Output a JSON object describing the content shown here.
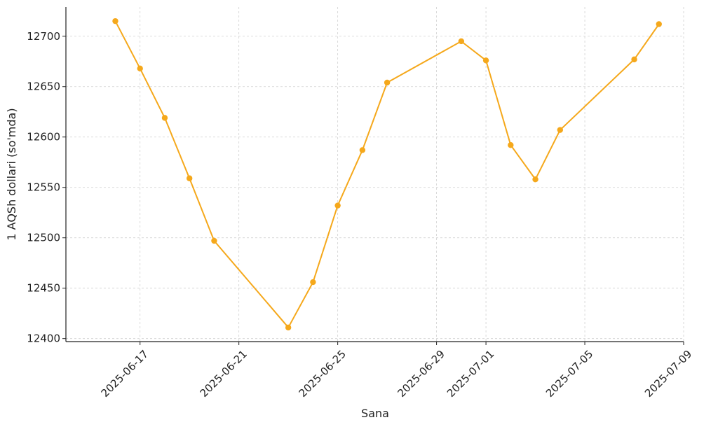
{
  "chart_data": {
    "type": "line",
    "title": "",
    "xlabel": "Sana",
    "ylabel": "1 AQSh dollari (so'mda)",
    "xlim": [
      "2025-06-14",
      "2025-07-09"
    ],
    "ylim": [
      12397,
      12729
    ],
    "grid": true,
    "legend": "none",
    "color": "#F5A81B",
    "x_ticks": [
      "2025-06-17",
      "2025-06-21",
      "2025-06-25",
      "2025-06-29",
      "2025-07-01",
      "2025-07-05",
      "2025-07-09"
    ],
    "y_ticks": [
      12400,
      12450,
      12500,
      12550,
      12600,
      12650,
      12700
    ],
    "series": [
      {
        "x": [
          "2025-06-16",
          "2025-06-17",
          "2025-06-18",
          "2025-06-19",
          "2025-06-20",
          "2025-06-23",
          "2025-06-24",
          "2025-06-25",
          "2025-06-26",
          "2025-06-27",
          "2025-06-30",
          "2025-07-01",
          "2025-07-02",
          "2025-07-03",
          "2025-07-04",
          "2025-07-07",
          "2025-07-08"
        ],
        "values": [
          12715,
          12668,
          12619,
          12559,
          12497,
          12411,
          12456,
          12532,
          12587,
          12654,
          12695,
          12676,
          12592,
          12558,
          12607,
          12677,
          12712
        ]
      }
    ]
  }
}
